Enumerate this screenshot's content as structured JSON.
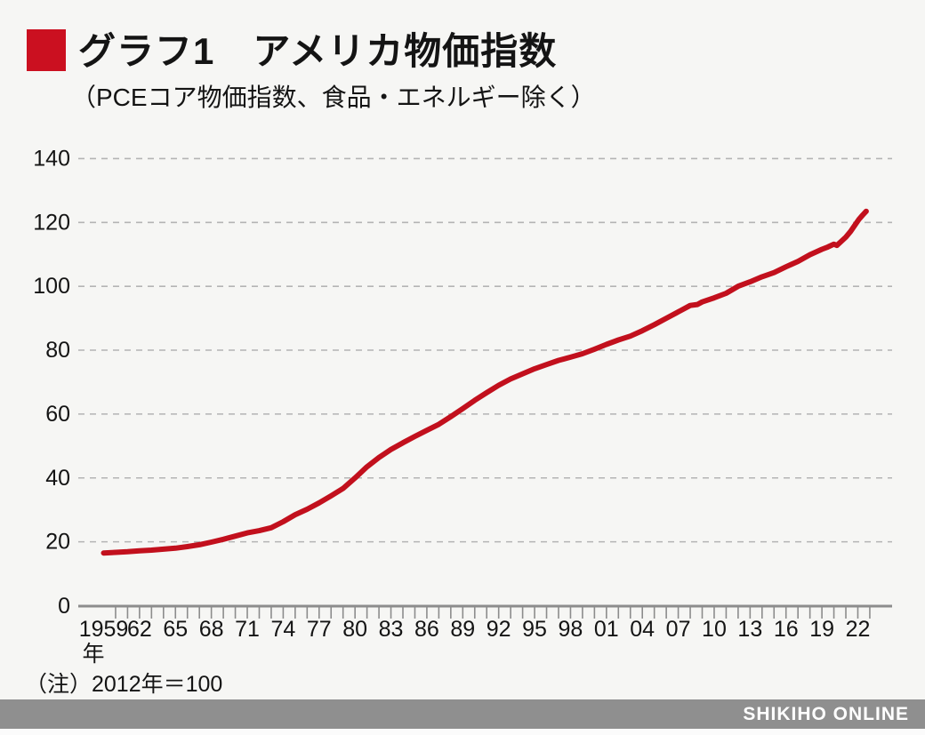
{
  "page": {
    "background": "#f6f6f4",
    "bottom_strip_color": "#fbfbfb"
  },
  "header": {
    "marker_color": "#cb1020",
    "title": "グラフ1　アメリカ物価指数",
    "subtitle": "（PCEコア物価指数、食品・エネルギー除く）"
  },
  "note": "（注）2012年＝100",
  "footer": {
    "text": "SHIKIHO ONLINE",
    "bar_color": "#8f8f8f",
    "text_color": "#ffffff"
  },
  "chart_data": {
    "type": "line",
    "title": "グラフ1　アメリカ物価指数",
    "subtitle": "PCEコア物価指数、食品・エネルギー除く",
    "note": "2012年＝100",
    "x_unit_label": "年",
    "ylim": [
      0,
      140
    ],
    "y_ticks": [
      0,
      20,
      40,
      60,
      80,
      100,
      120,
      140
    ],
    "x_range": [
      1959,
      2023
    ],
    "x_labeled_ticks": [
      {
        "year": 1959,
        "label": "1959"
      },
      {
        "year": 1962,
        "label": "62"
      },
      {
        "year": 1965,
        "label": "65"
      },
      {
        "year": 1968,
        "label": "68"
      },
      {
        "year": 1971,
        "label": "71"
      },
      {
        "year": 1974,
        "label": "74"
      },
      {
        "year": 1977,
        "label": "77"
      },
      {
        "year": 1980,
        "label": "80"
      },
      {
        "year": 1983,
        "label": "83"
      },
      {
        "year": 1986,
        "label": "86"
      },
      {
        "year": 1989,
        "label": "89"
      },
      {
        "year": 1992,
        "label": "92"
      },
      {
        "year": 1995,
        "label": "95"
      },
      {
        "year": 1998,
        "label": "98"
      },
      {
        "year": 2001,
        "label": "01"
      },
      {
        "year": 2004,
        "label": "04"
      },
      {
        "year": 2007,
        "label": "07"
      },
      {
        "year": 2010,
        "label": "10"
      },
      {
        "year": 2013,
        "label": "13"
      },
      {
        "year": 2016,
        "label": "16"
      },
      {
        "year": 2019,
        "label": "19"
      },
      {
        "year": 2022,
        "label": "22"
      }
    ],
    "grid": {
      "orientation": "horizontal",
      "style": "dashed",
      "color": "#b4b4b4"
    },
    "axis_color": "#8c8c8c",
    "label_color": "#141414",
    "line_color": "#c2101d",
    "legend": "none",
    "series": [
      {
        "name": "PCEコア物価指数（2012年＝100）",
        "points": [
          [
            1959,
            16.5
          ],
          [
            1960,
            16.7
          ],
          [
            1961,
            16.9
          ],
          [
            1962,
            17.2
          ],
          [
            1963,
            17.4
          ],
          [
            1964,
            17.7
          ],
          [
            1965,
            18.0
          ],
          [
            1966,
            18.5
          ],
          [
            1967,
            19.1
          ],
          [
            1968,
            19.9
          ],
          [
            1969,
            20.8
          ],
          [
            1970,
            21.8
          ],
          [
            1971,
            22.8
          ],
          [
            1972,
            23.5
          ],
          [
            1973,
            24.4
          ],
          [
            1974,
            26.3
          ],
          [
            1975,
            28.5
          ],
          [
            1976,
            30.2
          ],
          [
            1977,
            32.2
          ],
          [
            1978,
            34.4
          ],
          [
            1979,
            36.7
          ],
          [
            1980,
            40.0
          ],
          [
            1981,
            43.5
          ],
          [
            1982,
            46.4
          ],
          [
            1983,
            48.9
          ],
          [
            1984,
            51.0
          ],
          [
            1985,
            53.0
          ],
          [
            1986,
            54.9
          ],
          [
            1987,
            56.8
          ],
          [
            1988,
            59.2
          ],
          [
            1989,
            61.7
          ],
          [
            1990,
            64.3
          ],
          [
            1991,
            66.7
          ],
          [
            1992,
            69.0
          ],
          [
            1993,
            71.0
          ],
          [
            1994,
            72.6
          ],
          [
            1995,
            74.2
          ],
          [
            1996,
            75.5
          ],
          [
            1997,
            76.8
          ],
          [
            1998,
            77.8
          ],
          [
            1999,
            78.9
          ],
          [
            2000,
            80.3
          ],
          [
            2001,
            81.8
          ],
          [
            2002,
            83.2
          ],
          [
            2003,
            84.4
          ],
          [
            2004,
            86.1
          ],
          [
            2005,
            88.0
          ],
          [
            2006,
            90.0
          ],
          [
            2007,
            92.0
          ],
          [
            2008,
            94.0
          ],
          [
            2008.6,
            94.3
          ],
          [
            2009,
            95.1
          ],
          [
            2010,
            96.4
          ],
          [
            2011,
            97.8
          ],
          [
            2012,
            100.0
          ],
          [
            2013,
            101.4
          ],
          [
            2014,
            103.0
          ],
          [
            2015,
            104.3
          ],
          [
            2016,
            106.1
          ],
          [
            2017,
            107.8
          ],
          [
            2018,
            109.9
          ],
          [
            2019,
            111.6
          ],
          [
            2019.5,
            112.3
          ],
          [
            2020,
            113.2
          ],
          [
            2020.25,
            112.8
          ],
          [
            2020.6,
            114.0
          ],
          [
            2021,
            115.4
          ],
          [
            2021.4,
            117.2
          ],
          [
            2021.8,
            119.4
          ],
          [
            2022.1,
            121.0
          ],
          [
            2022.4,
            122.3
          ],
          [
            2022.7,
            123.5
          ]
        ]
      }
    ]
  }
}
